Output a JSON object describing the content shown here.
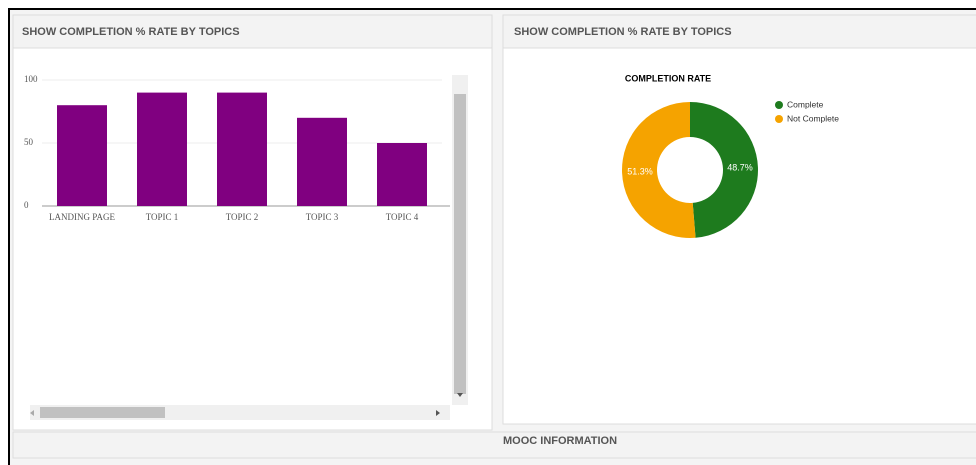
{
  "panels": [
    {
      "title": "SHOW COMPLETION % RATE BY TOPICS"
    },
    {
      "title": "SHOW COMPLETION % RATE BY TOPICS"
    }
  ],
  "footer": {
    "title": "MOOC INFORMATION"
  },
  "chart_data": [
    {
      "type": "bar",
      "categories": [
        "LANDING PAGE",
        "TOPIC 1",
        "TOPIC 2",
        "TOPIC 3",
        "TOPIC 4"
      ],
      "values": [
        80,
        90,
        90,
        70,
        50
      ],
      "color": "#800080",
      "ylim": [
        0,
        100
      ],
      "yticks": [
        0,
        50,
        100
      ],
      "grid": true
    },
    {
      "type": "pie",
      "title": "COMPLETION RATE",
      "donut": true,
      "categories": [
        "Complete",
        "Not Complete"
      ],
      "values": [
        48.7,
        51.3
      ],
      "value_labels": [
        "48.7%",
        "51.3%"
      ],
      "colors": [
        "#1e7b1e",
        "#f5a300"
      ],
      "legend": "right"
    }
  ]
}
